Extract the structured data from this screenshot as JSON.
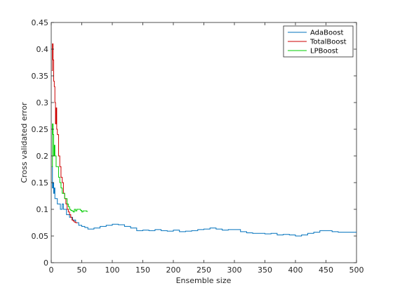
{
  "chart_data": {
    "type": "line",
    "title": "",
    "xlabel": "Ensemble size",
    "ylabel": "Cross validated error",
    "xlim": [
      0,
      500
    ],
    "ylim": [
      0,
      0.45
    ],
    "xticks": [
      0,
      50,
      100,
      150,
      200,
      250,
      300,
      350,
      400,
      450,
      500
    ],
    "yticks": [
      0,
      0.05,
      0.1,
      0.15,
      0.2,
      0.25,
      0.3,
      0.35,
      0.4,
      0.45
    ],
    "ytick_labels": [
      "0",
      "0.05",
      "0.1",
      "0.15",
      "0.2",
      "0.25",
      "0.3",
      "0.35",
      "0.4",
      "0.45"
    ],
    "grid": false,
    "legend_position": "top-right",
    "series": [
      {
        "name": "AdaBoost",
        "color": "#0072BD",
        "x": [
          1,
          2,
          3,
          4,
          5,
          6,
          8,
          10,
          12,
          15,
          18,
          20,
          25,
          30,
          35,
          40,
          45,
          50,
          55,
          60,
          70,
          80,
          90,
          100,
          110,
          120,
          130,
          140,
          150,
          160,
          170,
          180,
          190,
          200,
          210,
          220,
          230,
          240,
          250,
          260,
          270,
          280,
          290,
          300,
          310,
          320,
          330,
          340,
          350,
          360,
          370,
          380,
          390,
          400,
          410,
          420,
          430,
          440,
          450,
          460,
          470,
          480,
          490,
          500
        ],
        "y": [
          0.18,
          0.14,
          0.15,
          0.13,
          0.14,
          0.12,
          0.12,
          0.11,
          0.11,
          0.1,
          0.11,
          0.1,
          0.09,
          0.085,
          0.08,
          0.075,
          0.07,
          0.068,
          0.066,
          0.063,
          0.065,
          0.068,
          0.07,
          0.072,
          0.071,
          0.068,
          0.065,
          0.06,
          0.061,
          0.06,
          0.062,
          0.06,
          0.059,
          0.061,
          0.058,
          0.059,
          0.06,
          0.062,
          0.063,
          0.065,
          0.063,
          0.061,
          0.062,
          0.062,
          0.058,
          0.056,
          0.055,
          0.055,
          0.054,
          0.055,
          0.052,
          0.053,
          0.052,
          0.05,
          0.052,
          0.055,
          0.057,
          0.06,
          0.06,
          0.058,
          0.057,
          0.057,
          0.057,
          0.057
        ]
      },
      {
        "name": "TotalBoost",
        "color": "#CC0000",
        "x": [
          1,
          2,
          3,
          4,
          5,
          6,
          7,
          8,
          9,
          10,
          12,
          14,
          16,
          18,
          20,
          22,
          24,
          26,
          28,
          30,
          32,
          34,
          36,
          38,
          40,
          42
        ],
        "y": [
          0.36,
          0.41,
          0.38,
          0.34,
          0.33,
          0.3,
          0.26,
          0.29,
          0.25,
          0.24,
          0.2,
          0.18,
          0.16,
          0.15,
          0.13,
          0.12,
          0.11,
          0.1,
          0.095,
          0.09,
          0.085,
          0.08,
          0.078,
          0.076,
          0.075,
          0.074
        ]
      },
      {
        "name": "LPBoost",
        "color": "#00CC00",
        "x": [
          1,
          2,
          3,
          4,
          5,
          6,
          8,
          10,
          12,
          14,
          16,
          18,
          20,
          22,
          24,
          26,
          28,
          30,
          32,
          34,
          36,
          38,
          40,
          42,
          44,
          46,
          48,
          50,
          52,
          54,
          56,
          58,
          60
        ],
        "y": [
          0.18,
          0.26,
          0.24,
          0.2,
          0.22,
          0.2,
          0.18,
          0.18,
          0.16,
          0.15,
          0.14,
          0.13,
          0.13,
          0.12,
          0.12,
          0.11,
          0.105,
          0.1,
          0.098,
          0.097,
          0.095,
          0.1,
          0.097,
          0.1,
          0.1,
          0.1,
          0.098,
          0.095,
          0.097,
          0.097,
          0.097,
          0.096,
          0.096
        ]
      }
    ]
  }
}
